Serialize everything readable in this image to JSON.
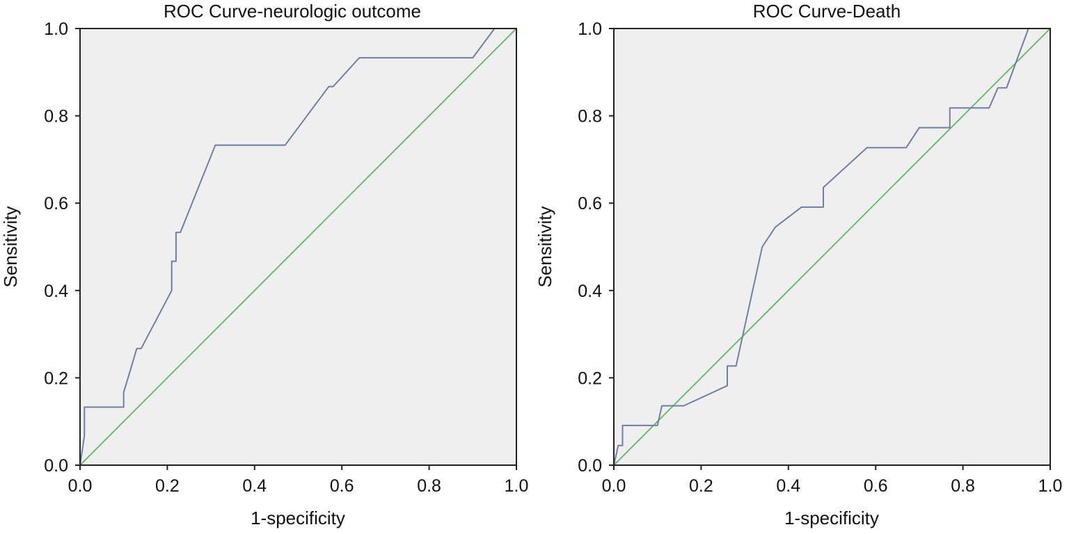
{
  "colors": {
    "plot_background": "#efefef",
    "frame": "#222222",
    "roc_line": "#6f7fa3",
    "reference_line": "#5cba5c"
  },
  "chart_data": [
    {
      "type": "line",
      "title": "ROC Curve-neurologic outcome",
      "xlabel": "1-specificity",
      "ylabel": "Sensitivity",
      "xlim": [
        0,
        1
      ],
      "ylim": [
        0,
        1
      ],
      "x_ticks": [
        "0.0",
        "0.2",
        "0.4",
        "0.6",
        "0.8",
        "1.0"
      ],
      "y_ticks": [
        "0.0",
        "0.2",
        "0.4",
        "0.6",
        "0.8",
        "1.0"
      ],
      "grid": false,
      "legend": "none",
      "roc_curve": {
        "x": [
          0.0,
          0.01,
          0.01,
          0.1,
          0.1,
          0.11,
          0.13,
          0.14,
          0.21,
          0.21,
          0.22,
          0.22,
          0.23,
          0.31,
          0.47,
          0.57,
          0.58,
          0.64,
          0.9,
          0.95,
          1.0
        ],
        "y": [
          0.0,
          0.067,
          0.133,
          0.133,
          0.167,
          0.2,
          0.267,
          0.267,
          0.4,
          0.467,
          0.467,
          0.533,
          0.533,
          0.733,
          0.733,
          0.867,
          0.867,
          0.933,
          0.933,
          1.0,
          1.0
        ]
      },
      "reference_line": {
        "x": [
          0,
          1
        ],
        "y": [
          0,
          1
        ]
      }
    },
    {
      "type": "line",
      "title": "ROC Curve-Death",
      "xlabel": "1-specificity",
      "ylabel": "Sensitivity",
      "xlim": [
        0,
        1
      ],
      "ylim": [
        0,
        1
      ],
      "x_ticks": [
        "0.0",
        "0.2",
        "0.4",
        "0.6",
        "0.8",
        "1.0"
      ],
      "y_ticks": [
        "0.0",
        "0.2",
        "0.4",
        "0.6",
        "0.8",
        "1.0"
      ],
      "grid": false,
      "legend": "none",
      "roc_curve": {
        "x": [
          0.0,
          0.01,
          0.02,
          0.02,
          0.1,
          0.11,
          0.16,
          0.26,
          0.26,
          0.28,
          0.34,
          0.37,
          0.43,
          0.48,
          0.48,
          0.58,
          0.67,
          0.7,
          0.77,
          0.77,
          0.86,
          0.88,
          0.9,
          0.95,
          1.0
        ],
        "y": [
          0.0,
          0.045,
          0.045,
          0.091,
          0.091,
          0.136,
          0.136,
          0.182,
          0.227,
          0.227,
          0.5,
          0.545,
          0.591,
          0.591,
          0.636,
          0.727,
          0.727,
          0.773,
          0.773,
          0.818,
          0.818,
          0.864,
          0.864,
          1.0,
          1.0
        ]
      },
      "reference_line": {
        "x": [
          0,
          1
        ],
        "y": [
          0,
          1
        ]
      }
    }
  ]
}
